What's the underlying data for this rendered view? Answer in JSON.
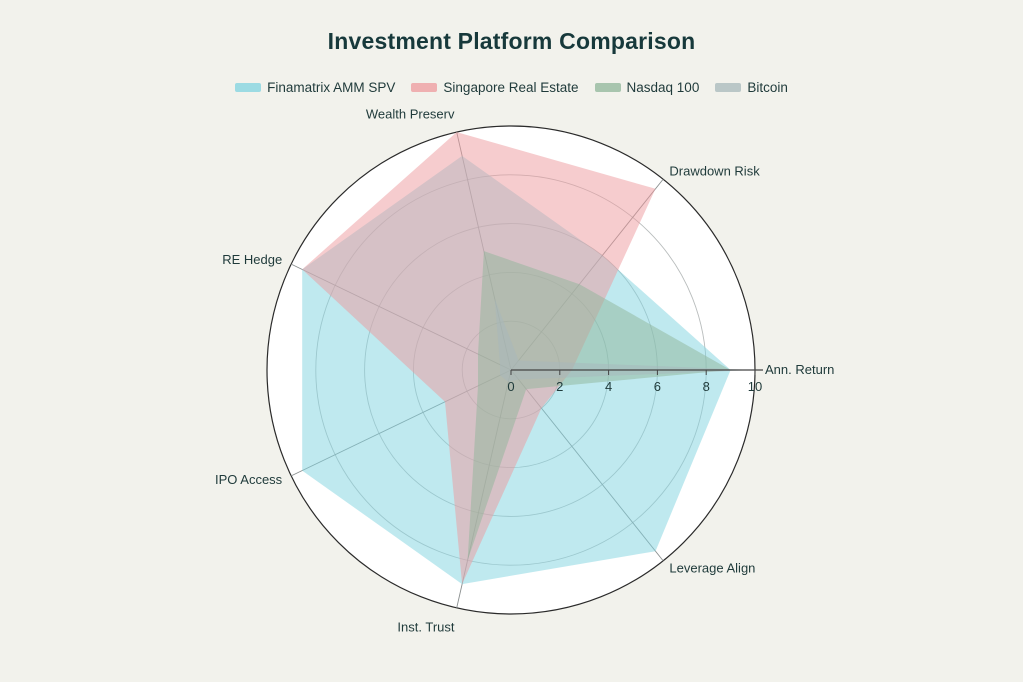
{
  "chart_data": {
    "type": "radar",
    "title": "Investment Platform Comparison",
    "axes": [
      "Ann. Return",
      "Drawdown Risk",
      "Wealth Preserv",
      "RE Hedge",
      "IPO Access",
      "Inst. Trust",
      "Leverage Align"
    ],
    "radial_range": [
      0,
      10
    ],
    "radial_ticks": [
      0,
      2,
      4,
      6,
      8,
      10
    ],
    "legend_position": "top-center",
    "series": [
      {
        "name": "Finamatrix AMM SPV",
        "values": [
          9,
          6,
          9,
          9.5,
          9.5,
          9,
          9.5
        ],
        "color": "#7fd3e0"
      },
      {
        "name": "Singapore Real Estate",
        "values": [
          2.5,
          9.5,
          10,
          9.5,
          3,
          9,
          2
        ],
        "color": "#ee9a9e"
      },
      {
        "name": "Nasdaq 100",
        "values": [
          9,
          4.5,
          5,
          1.5,
          1.5,
          8,
          1
        ],
        "color": "#8fb59a"
      },
      {
        "name": "Bitcoin",
        "values": [
          10,
          0.5,
          3,
          0.5,
          0.5,
          0.5,
          0.5
        ],
        "color": "#a7b8bb"
      }
    ]
  }
}
